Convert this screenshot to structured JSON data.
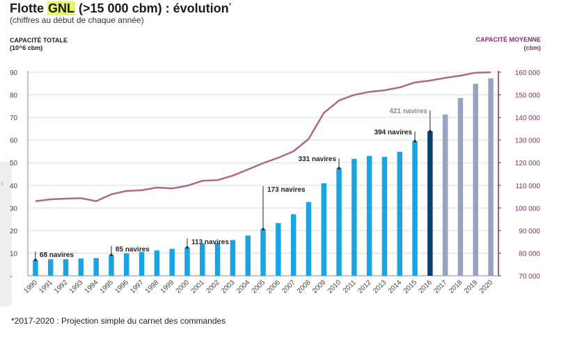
{
  "title": {
    "prefix": "Flotte ",
    "highlight": "GNL",
    "suffix": " (>15 000 cbm) : évolution",
    "marker": "*"
  },
  "subtitle": "(chiffres au début de chaque année)",
  "left_axis_title": [
    "CAPACITÉ TOTALE",
    "(10^6 cbm)"
  ],
  "right_axis_title": [
    "CAPACITÉ MOYENNE",
    "(cbm)"
  ],
  "footnote": "*2017-2020 : Projection simple du carnet des commandes",
  "left_tab_icon": "chevron-left-icon",
  "colors": {
    "bar_actual": "#1aa4e4",
    "bar_current": "#0b3f6e",
    "bar_projection": "#9aa3bd",
    "line": "#b0668f",
    "right_axis": "#8c2a6a",
    "grid": "#dddddd"
  },
  "chart_data": {
    "type": "bar",
    "categories": [
      "1990",
      "1991",
      "1992",
      "1993",
      "1994",
      "1995",
      "1996",
      "1997",
      "1998",
      "1999",
      "2000",
      "2001",
      "2002",
      "2003",
      "2004",
      "2005",
      "2006",
      "2007",
      "2008",
      "2009",
      "2010",
      "2011",
      "2012",
      "2013",
      "2014",
      "2015",
      "2016",
      "2017",
      "2018",
      "2019",
      "2020"
    ],
    "series": [
      {
        "type": "bar",
        "axis": "left",
        "values": [
          7,
          7.3,
          7.3,
          7.6,
          7.8,
          9.2,
          9.9,
          10.5,
          11.2,
          11.9,
          12.5,
          14.3,
          14.5,
          15.8,
          17.8,
          20.6,
          23.3,
          27.2,
          32.6,
          40.9,
          47.6,
          51.7,
          53.0,
          52.6,
          54.8,
          59.5,
          63.9,
          71.3,
          78.6,
          84.9,
          87.3
        ],
        "status": [
          "actual",
          "actual",
          "actual",
          "actual",
          "actual",
          "actual",
          "actual",
          "actual",
          "actual",
          "actual",
          "actual",
          "actual",
          "actual",
          "actual",
          "actual",
          "actual",
          "actual",
          "actual",
          "actual",
          "actual",
          "actual",
          "actual",
          "actual",
          "actual",
          "actual",
          "actual",
          "current",
          "projection",
          "projection",
          "projection",
          "projection"
        ]
      },
      {
        "type": "line",
        "axis": "right",
        "values": [
          103000,
          103800,
          104100,
          104300,
          103000,
          106000,
          107500,
          107800,
          109000,
          108600,
          109800,
          112000,
          112300,
          114300,
          117000,
          119800,
          122200,
          125000,
          130500,
          142000,
          147500,
          150000,
          151300,
          152000,
          153300,
          155500,
          156300,
          157500,
          158500,
          159800,
          160000
        ]
      }
    ],
    "y_left": {
      "min": 0,
      "max": 90,
      "ticks": [
        "-",
        "10",
        "20",
        "30",
        "40",
        "50",
        "60",
        "70",
        "80",
        "90"
      ]
    },
    "y_right": {
      "min": 70000,
      "max": 160000,
      "ticks": [
        "70 000",
        "80 000",
        "90 000",
        "100 000",
        "110 000",
        "120 000",
        "130 000",
        "140 000",
        "150 000",
        "160 000"
      ]
    },
    "annotations": [
      {
        "year": "1990",
        "label": "68 navires"
      },
      {
        "year": "1995",
        "label": "85 navires"
      },
      {
        "year": "2000",
        "label": "113 navires"
      },
      {
        "year": "2005",
        "label": "173 navires"
      },
      {
        "year": "2010",
        "label": "331 navires"
      },
      {
        "year": "2015",
        "label": "394 navires"
      },
      {
        "year": "2016",
        "label": "421 navires"
      }
    ],
    "grid": true,
    "legend": "none"
  }
}
